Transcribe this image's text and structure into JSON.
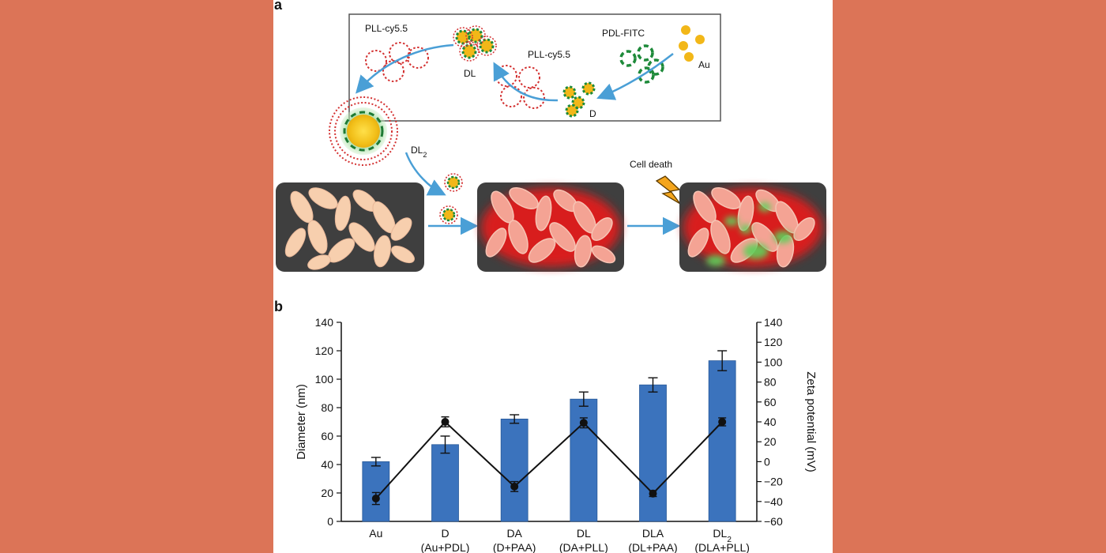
{
  "panel_a": {
    "label": "a",
    "labels": {
      "pll_top": "PLL-cy5.5",
      "pll_mid": "PLL-cy5.5",
      "pdl_fitc": "PDL-FITC",
      "au": "Au",
      "dl": "DL",
      "d": "D",
      "dl2_base": "DL",
      "dl2_sub": "2",
      "cell_death": "Cell death"
    },
    "colors": {
      "arrow": "#4a9fd6",
      "gold": "#f2b718",
      "fitc": "#1e8a3a",
      "cy55": "#d33030",
      "cell": "#f7cfae",
      "dish": "#3f3f3f"
    }
  },
  "panel_b": {
    "label": "b"
  },
  "chart_data": {
    "type": "bar",
    "categories": [
      "Au",
      "D",
      "DA",
      "DL",
      "DLA",
      "DL2"
    ],
    "category_labels": [
      {
        "main": "Au",
        "sub": "",
        "paren": ""
      },
      {
        "main": "D",
        "sub": "",
        "paren": "(Au+PDL)"
      },
      {
        "main": "DA",
        "sub": "",
        "paren": "(D+PAA)"
      },
      {
        "main": "DL",
        "sub": "",
        "paren": "(DA+PLL)"
      },
      {
        "main": "DLA",
        "sub": "",
        "paren": "(DL+PAA)"
      },
      {
        "main": "DL",
        "sub": "2",
        "paren": "(DLA+PLL)"
      }
    ],
    "series": [
      {
        "type": "bar",
        "axis": "left",
        "values": [
          42,
          54,
          72,
          86,
          96,
          113
        ],
        "errors": [
          3,
          6,
          3,
          5,
          5,
          7
        ]
      },
      {
        "type": "line",
        "axis": "right",
        "values": [
          -37,
          40,
          -25,
          39,
          -32,
          40
        ],
        "errors": [
          6,
          5,
          5,
          5,
          3,
          4
        ]
      }
    ],
    "ylabel": "Diameter (nm)",
    "ylabel_right": "Zeta potential (mV)",
    "ylim": [
      0,
      140
    ],
    "ylim_right": [
      -60,
      140
    ],
    "yticks": [
      0,
      20,
      40,
      60,
      80,
      100,
      120,
      140
    ],
    "yticks_right": [
      -60,
      -40,
      -20,
      0,
      20,
      40,
      60,
      80,
      100,
      120,
      140
    ],
    "colors": {
      "bar": "#3b73bd",
      "line": "#111111"
    },
    "grid": false
  }
}
